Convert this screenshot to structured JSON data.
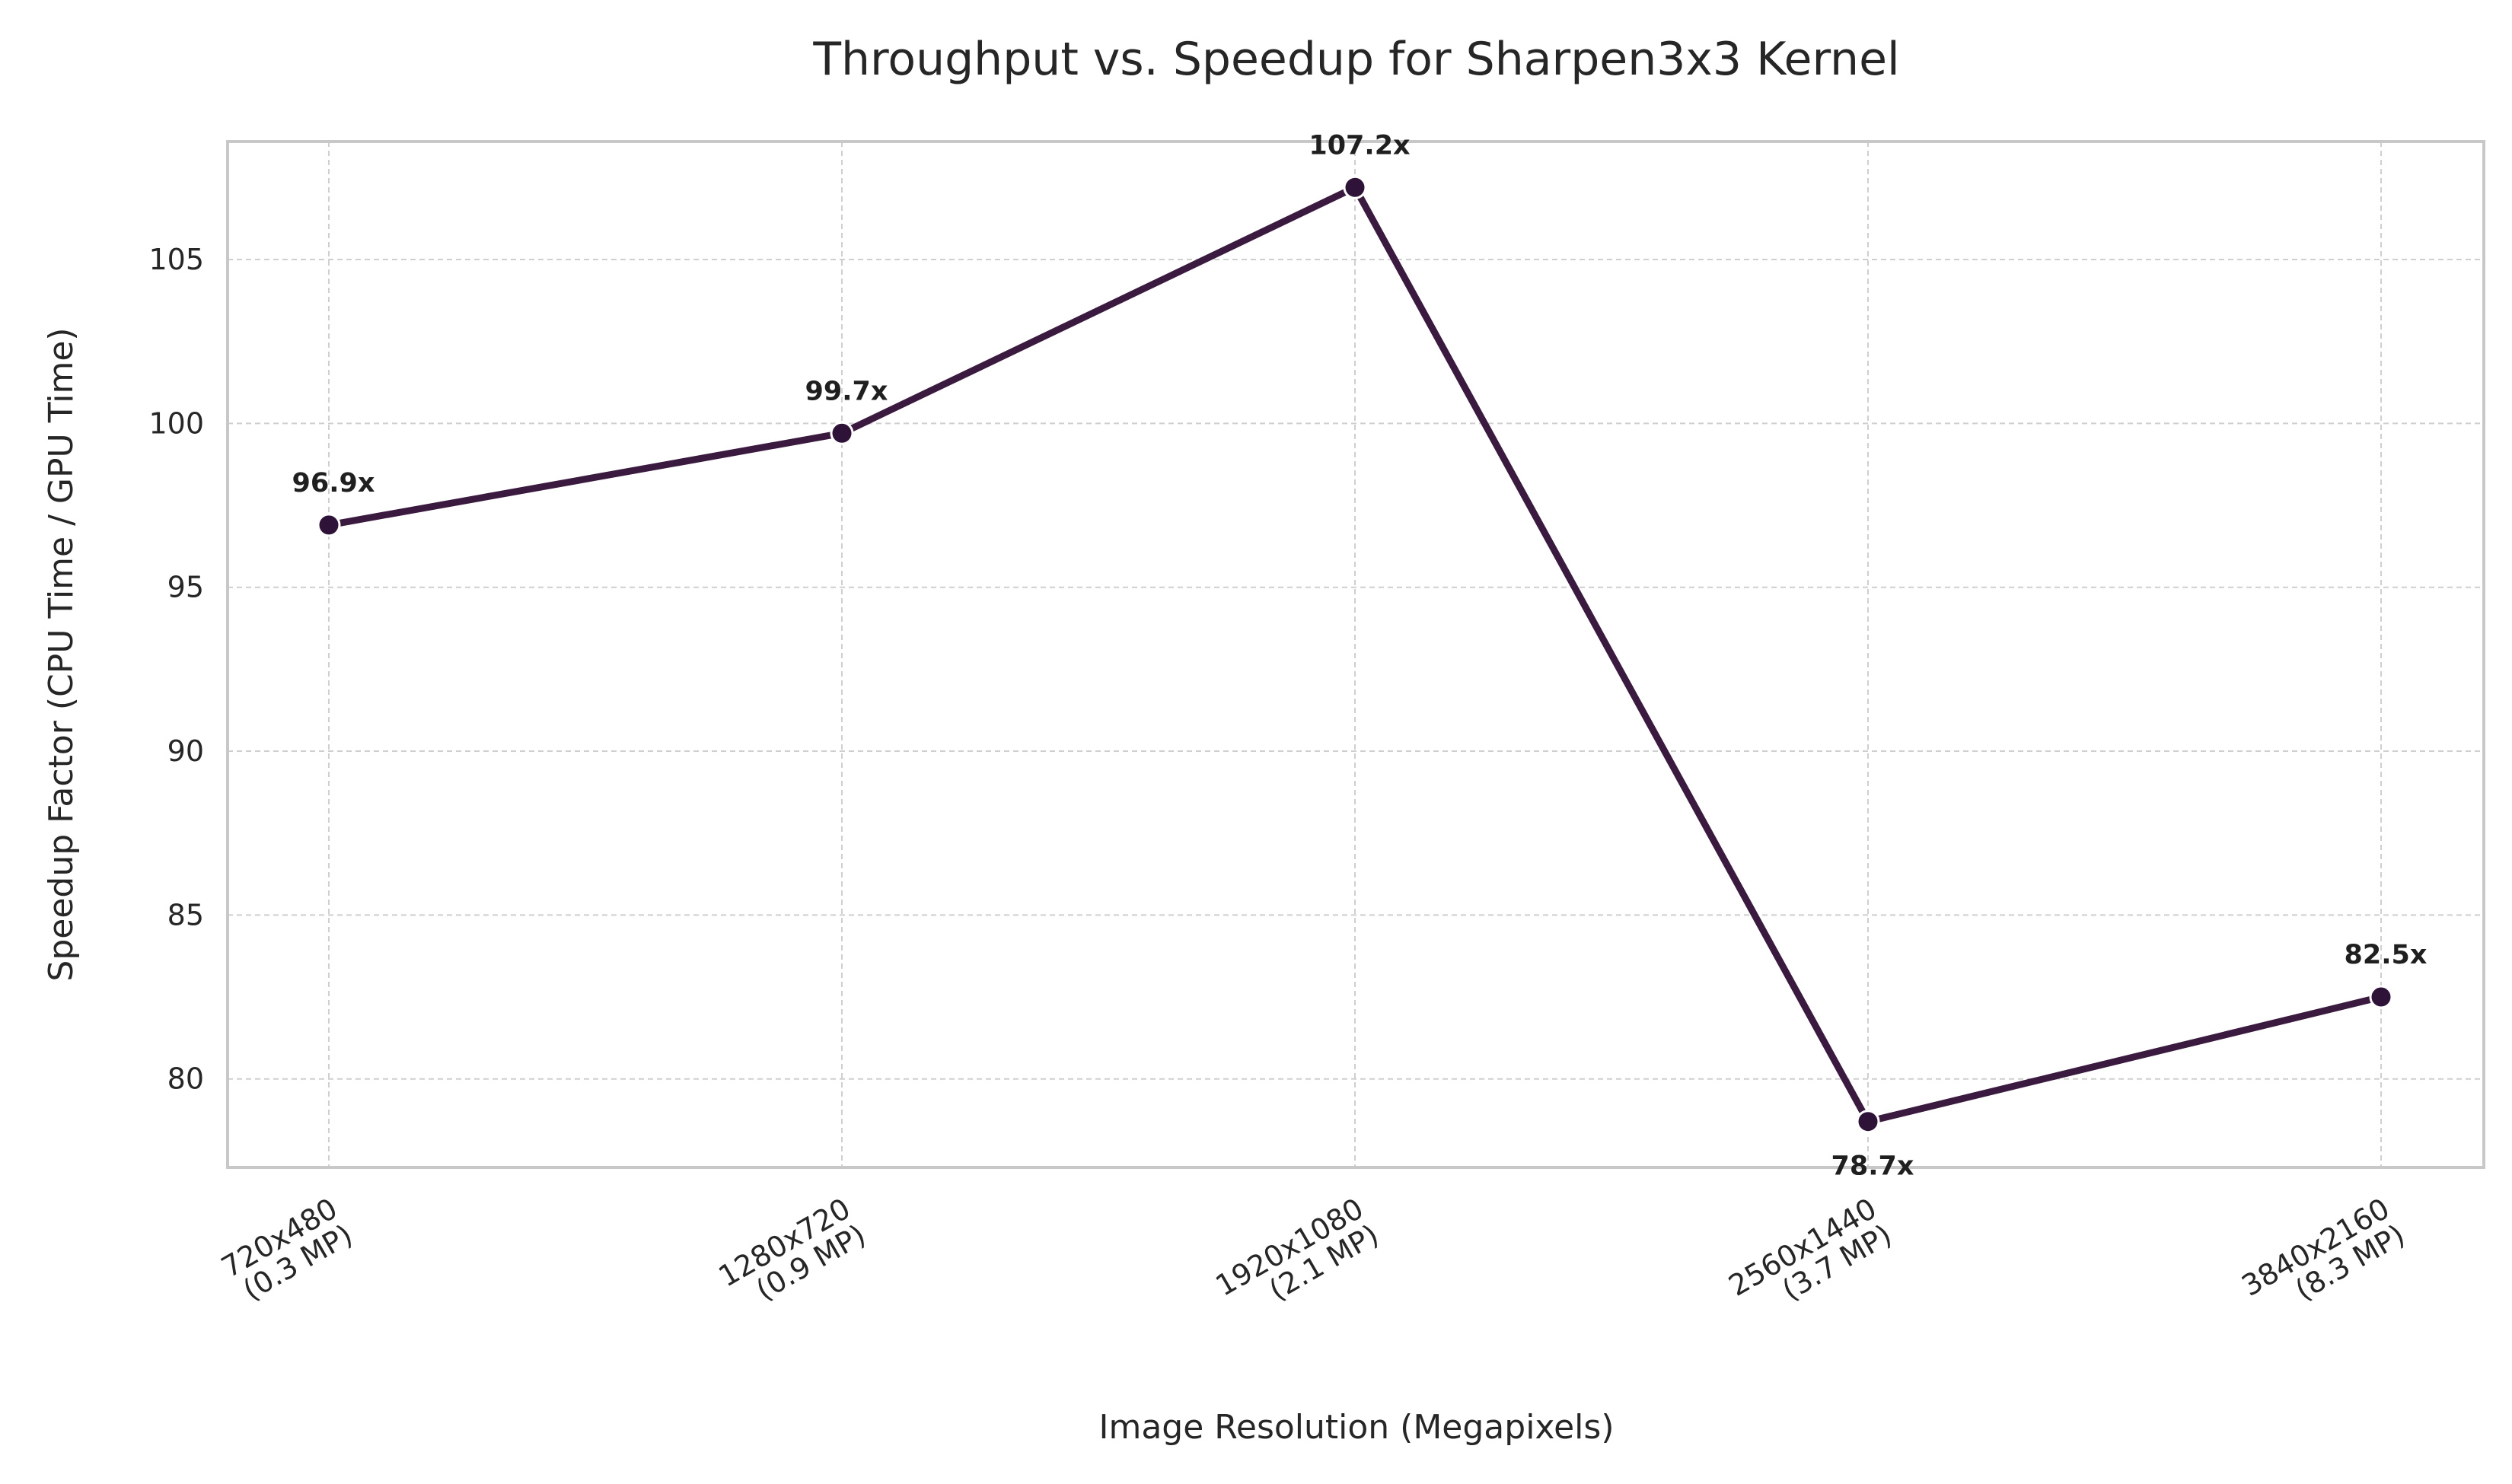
{
  "chart_data": {
    "type": "line",
    "title": "Throughput vs. Speedup for Sharpen3x3 Kernel",
    "xlabel": "Image Resolution (Megapixels)",
    "ylabel": "Speedup Factor (CPU Time / GPU Time)",
    "categories": [
      [
        "720x480",
        "(0.3 MP)"
      ],
      [
        "1280x720",
        "(0.9 MP)"
      ],
      [
        "1920x1080",
        "(2.1 MP)"
      ],
      [
        "2560x1440",
        "(3.7 MP)"
      ],
      [
        "3840x2160",
        "(8.3 MP)"
      ]
    ],
    "values": [
      96.9,
      99.7,
      107.2,
      78.7,
      82.5
    ],
    "data_labels": [
      "96.9x",
      "99.7x",
      "107.2x",
      "78.7x",
      "82.5x"
    ],
    "data_label_position": [
      "above",
      "above",
      "above",
      "below",
      "above"
    ],
    "ylim": [
      77.3,
      108.6
    ],
    "yticks": [
      80,
      85,
      90,
      95,
      100,
      105
    ],
    "grid": true,
    "line_color": "#3b1a40",
    "marker_color": "#2e1238"
  }
}
